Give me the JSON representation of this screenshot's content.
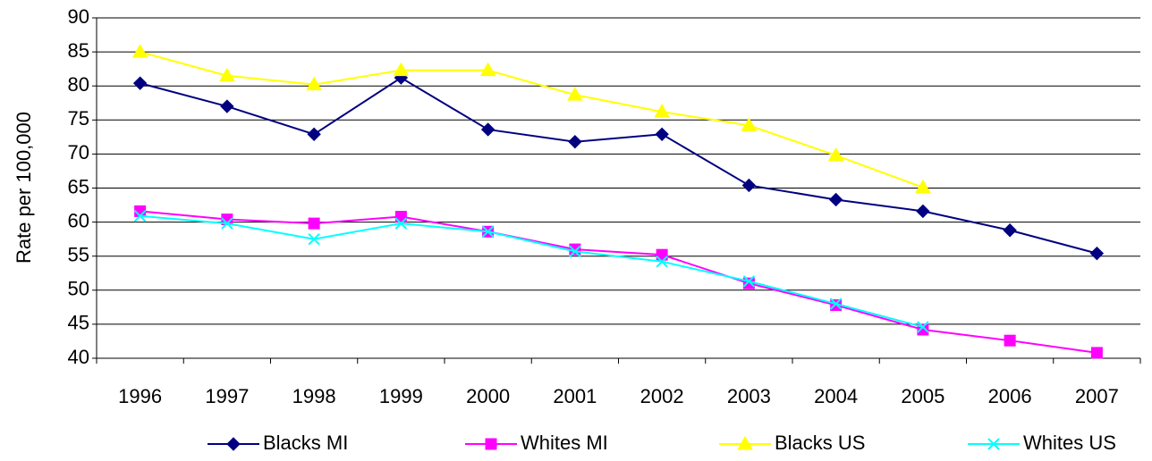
{
  "chart_data": {
    "type": "line",
    "y_label": "Rate per 100,000",
    "categories": [
      "1996",
      "1997",
      "1998",
      "1999",
      "2000",
      "2001",
      "2002",
      "2003",
      "2004",
      "2005",
      "2006",
      "2007"
    ],
    "series": [
      {
        "name": "Blacks MI",
        "color": "#000080",
        "marker": "diamond",
        "values": [
          80.4,
          77,
          72.9,
          81.2,
          73.6,
          71.8,
          72.9,
          65.4,
          63.3,
          61.6,
          58.8,
          55.4
        ]
      },
      {
        "name": "Whites MI",
        "color": "#ff00ff",
        "marker": "square",
        "values": [
          61.6,
          60.4,
          59.8,
          60.8,
          58.6,
          56,
          55.2,
          51,
          47.8,
          44.2,
          42.6,
          40.8
        ]
      },
      {
        "name": "Blacks US",
        "color": "#ffff00",
        "marker": "triangle",
        "values": [
          85,
          81.5,
          80.2,
          82.3,
          82.3,
          78.7,
          76.2,
          74.2,
          69.8,
          65.1,
          null,
          null
        ]
      },
      {
        "name": "Whites US",
        "color": "#00ffff",
        "marker": "x",
        "values": [
          60.9,
          59.8,
          57.5,
          59.8,
          58.6,
          55.7,
          54.2,
          51.3,
          48,
          44.6,
          null,
          null
        ]
      }
    ],
    "ylim": [
      40,
      90
    ],
    "yticks": [
      40,
      45,
      50,
      55,
      60,
      65,
      70,
      75,
      80,
      85,
      90
    ],
    "grid": true,
    "legend": "bottom"
  }
}
